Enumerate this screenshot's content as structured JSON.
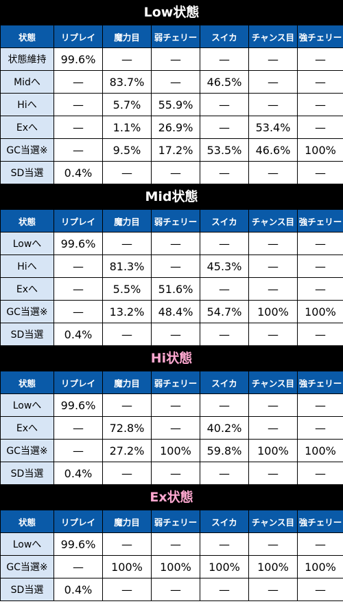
{
  "columns": [
    "状態",
    "リプレイ",
    "魔力目",
    "弱チェリー",
    "スイカ",
    "チャンス目",
    "強チェリー"
  ],
  "sections": [
    {
      "title": "Low状態",
      "rows": [
        {
          "label": "状態維持",
          "cells": [
            "99.6%",
            "—",
            "—",
            "—",
            "—",
            "—"
          ]
        },
        {
          "label": "Midへ",
          "cells": [
            "—",
            "83.7%",
            "—",
            "46.5%",
            "—",
            "—"
          ]
        },
        {
          "label": "Hiへ",
          "cells": [
            "—",
            "5.7%",
            "55.9%",
            "—",
            "—",
            "—"
          ]
        },
        {
          "label": "Exへ",
          "cells": [
            "—",
            "1.1%",
            "26.9%",
            "—",
            "53.4%",
            "—"
          ]
        },
        {
          "label": "GC当選※",
          "cells": [
            "—",
            "9.5%",
            "17.2%",
            "53.5%",
            "46.6%",
            "100%"
          ]
        },
        {
          "label": "SD当選",
          "cells": [
            "0.4%",
            "—",
            "—",
            "—",
            "—",
            "—"
          ]
        }
      ]
    },
    {
      "title": "Mid状態",
      "rows": [
        {
          "label": "Lowへ",
          "cells": [
            "99.6%",
            "—",
            "—",
            "—",
            "—",
            "—"
          ]
        },
        {
          "label": "Hiへ",
          "cells": [
            "—",
            "81.3%",
            "—",
            "45.3%",
            "—",
            "—"
          ]
        },
        {
          "label": "Exへ",
          "cells": [
            "—",
            "5.5%",
            "51.6%",
            "—",
            "—",
            "—"
          ]
        },
        {
          "label": "GC当選※",
          "cells": [
            "—",
            "13.2%",
            "48.4%",
            "54.7%",
            "100%",
            "100%"
          ]
        },
        {
          "label": "SD当選",
          "cells": [
            "0.4%",
            "—",
            "—",
            "—",
            "—",
            "—"
          ]
        }
      ]
    },
    {
      "title": "Hi状態",
      "rows": [
        {
          "label": "Lowへ",
          "cells": [
            "99.6%",
            "—",
            "—",
            "—",
            "—",
            "—"
          ]
        },
        {
          "label": "Exへ",
          "cells": [
            "—",
            "72.8%",
            "—",
            "40.2%",
            "—",
            "—"
          ]
        },
        {
          "label": "GC当選※",
          "cells": [
            "—",
            "27.2%",
            "100%",
            "59.8%",
            "100%",
            "100%"
          ]
        },
        {
          "label": "SD当選",
          "cells": [
            "0.4%",
            "—",
            "—",
            "—",
            "—",
            "—"
          ]
        }
      ]
    },
    {
      "title": "Ex状態",
      "rows": [
        {
          "label": "Lowへ",
          "cells": [
            "99.6%",
            "—",
            "—",
            "—",
            "—",
            "—"
          ]
        },
        {
          "label": "GC当選※",
          "cells": [
            "—",
            "100%",
            "100%",
            "100%",
            "100%",
            "100%"
          ]
        },
        {
          "label": "SD当選",
          "cells": [
            "0.4%",
            "—",
            "—",
            "—",
            "—",
            "—"
          ]
        }
      ]
    }
  ]
}
